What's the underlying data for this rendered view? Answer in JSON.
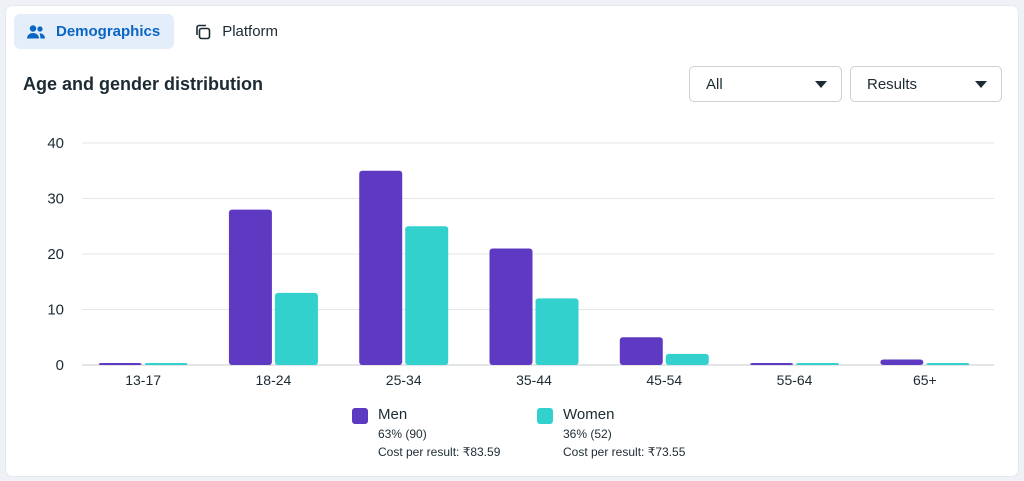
{
  "tabs": [
    {
      "label": "Demographics",
      "icon": "people-icon",
      "active": true
    },
    {
      "label": "Platform",
      "icon": "copy-icon",
      "active": false
    }
  ],
  "title": "Age and gender distribution",
  "filters": {
    "audience": "All",
    "metric": "Results"
  },
  "legend": {
    "men": {
      "name": "Men",
      "share": "63% (90)",
      "cost": "Cost per result: ₹83.59"
    },
    "women": {
      "name": "Women",
      "share": "36% (52)",
      "cost": "Cost per result: ₹73.55"
    }
  },
  "colors": {
    "men": "#5e3ac2",
    "women": "#33d1ce",
    "accent": "#0a66c2"
  },
  "chart_data": {
    "type": "bar",
    "categories": [
      "13-17",
      "18-24",
      "25-34",
      "35-44",
      "45-54",
      "55-64",
      "65+"
    ],
    "series": [
      {
        "name": "Men",
        "values": [
          0,
          28,
          35,
          21,
          5,
          0,
          1
        ]
      },
      {
        "name": "Women",
        "values": [
          0,
          13,
          25,
          12,
          2,
          0,
          0
        ]
      }
    ],
    "yticks": [
      0,
      10,
      20,
      30,
      40
    ],
    "ylim": [
      0,
      40
    ],
    "grid": true,
    "legend_position": "bottom"
  }
}
